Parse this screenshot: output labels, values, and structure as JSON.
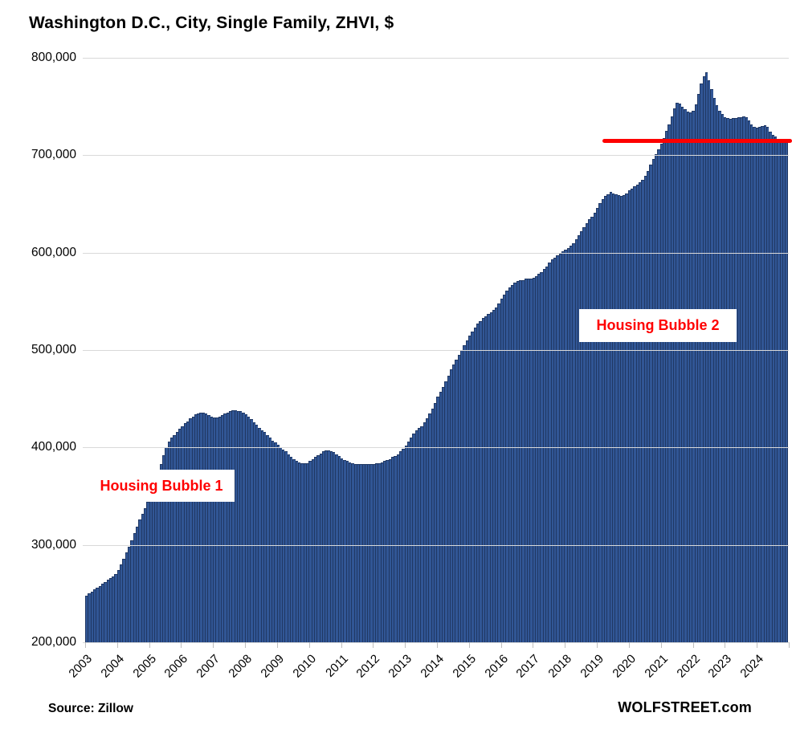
{
  "title": "Washington D.C., City, Single Family, ZHVI, $",
  "source": "Source: Zillow",
  "watermark": "WOLFSTREET.com",
  "annotations": {
    "bubble1": "Housing Bubble 1",
    "bubble2": "Housing Bubble 2"
  },
  "colors": {
    "bar_fill": "#315695",
    "bar_border": "#203864",
    "red_line": "#fe0000",
    "gridline": "#d9d9d9",
    "annotation_text": "#ff0000"
  },
  "chart_data": {
    "type": "bar",
    "title": "Washington D.C., City, Single Family, ZHVI, $",
    "unit": "USD",
    "frequency": "monthly",
    "start": "2003-01",
    "end": "2024-12",
    "ylim": [
      200000,
      800000
    ],
    "grid": "horizontal",
    "y_tick_labels": [
      "800,000",
      "700,000",
      "600,000",
      "500,000",
      "400,000",
      "300,000",
      "200,000"
    ],
    "y_tick_values": [
      800000,
      700000,
      600000,
      500000,
      400000,
      300000,
      200000
    ],
    "x_tick_labels": [
      "2003",
      "2004",
      "2005",
      "2006",
      "2007",
      "2008",
      "2009",
      "2010",
      "2011",
      "2012",
      "2013",
      "2014",
      "2015",
      "2016",
      "2017",
      "2018",
      "2019",
      "2020",
      "2021",
      "2022",
      "2023",
      "2024"
    ],
    "red_line": {
      "value": 715000,
      "start": "2019-03",
      "start_index": 194,
      "extends_to_right_edge": true
    },
    "values": [
      248000,
      250000,
      252000,
      254000,
      256000,
      258000,
      260000,
      262000,
      264000,
      266000,
      268000,
      270000,
      274000,
      280000,
      286000,
      292000,
      298000,
      305000,
      312000,
      319000,
      326000,
      332000,
      338000,
      344000,
      350000,
      357000,
      365000,
      374000,
      383000,
      392000,
      400000,
      406000,
      410000,
      413000,
      416000,
      419000,
      422000,
      425000,
      427000,
      430000,
      432000,
      434000,
      435000,
      436000,
      436000,
      435000,
      433000,
      432000,
      431000,
      431000,
      432000,
      433000,
      435000,
      436000,
      437000,
      438000,
      438000,
      437000,
      437000,
      436000,
      434000,
      432000,
      429000,
      426000,
      423000,
      420000,
      418000,
      416000,
      413000,
      410000,
      407000,
      405000,
      403000,
      400000,
      398000,
      396000,
      393000,
      390000,
      388000,
      386000,
      385000,
      384000,
      384000,
      384000,
      386000,
      388000,
      390000,
      392000,
      394000,
      396000,
      397000,
      397000,
      396000,
      395000,
      393000,
      391000,
      389000,
      387000,
      386000,
      385000,
      384000,
      383000,
      383000,
      383000,
      383000,
      383000,
      383000,
      383000,
      383000,
      384000,
      384000,
      385000,
      386000,
      387000,
      388000,
      390000,
      391000,
      393000,
      396000,
      399000,
      402000,
      406000,
      410000,
      414000,
      418000,
      420000,
      422000,
      426000,
      430000,
      435000,
      440000,
      446000,
      452000,
      457000,
      462000,
      468000,
      474000,
      480000,
      485000,
      490000,
      495000,
      500000,
      505000,
      510000,
      515000,
      519000,
      523000,
      527000,
      530000,
      533000,
      535000,
      537000,
      539000,
      541000,
      544000,
      548000,
      553000,
      557000,
      561000,
      564000,
      567000,
      569000,
      571000,
      572000,
      572000,
      573000,
      573000,
      573000,
      574000,
      576000,
      578000,
      580000,
      583000,
      586000,
      590000,
      593000,
      595000,
      597000,
      599000,
      601000,
      603000,
      605000,
      607000,
      610000,
      614000,
      618000,
      622000,
      626000,
      630000,
      634000,
      637000,
      641000,
      646000,
      651000,
      655000,
      658000,
      660000,
      662000,
      661000,
      660000,
      659000,
      658000,
      659000,
      661000,
      664000,
      666000,
      668000,
      670000,
      672000,
      675000,
      679000,
      684000,
      690000,
      696000,
      701000,
      706000,
      712000,
      718000,
      725000,
      732000,
      740000,
      748000,
      754000,
      753000,
      750000,
      747000,
      745000,
      744000,
      746000,
      752000,
      763000,
      774000,
      781000,
      785000,
      777000,
      768000,
      759000,
      751000,
      746000,
      742000,
      739000,
      738000,
      737000,
      738000,
      738000,
      739000,
      739000,
      740000,
      739000,
      736000,
      732000,
      729000,
      728000,
      729000,
      730000,
      731000,
      729000,
      724000,
      721000,
      719000,
      717000,
      716000,
      716000,
      715000
    ]
  }
}
